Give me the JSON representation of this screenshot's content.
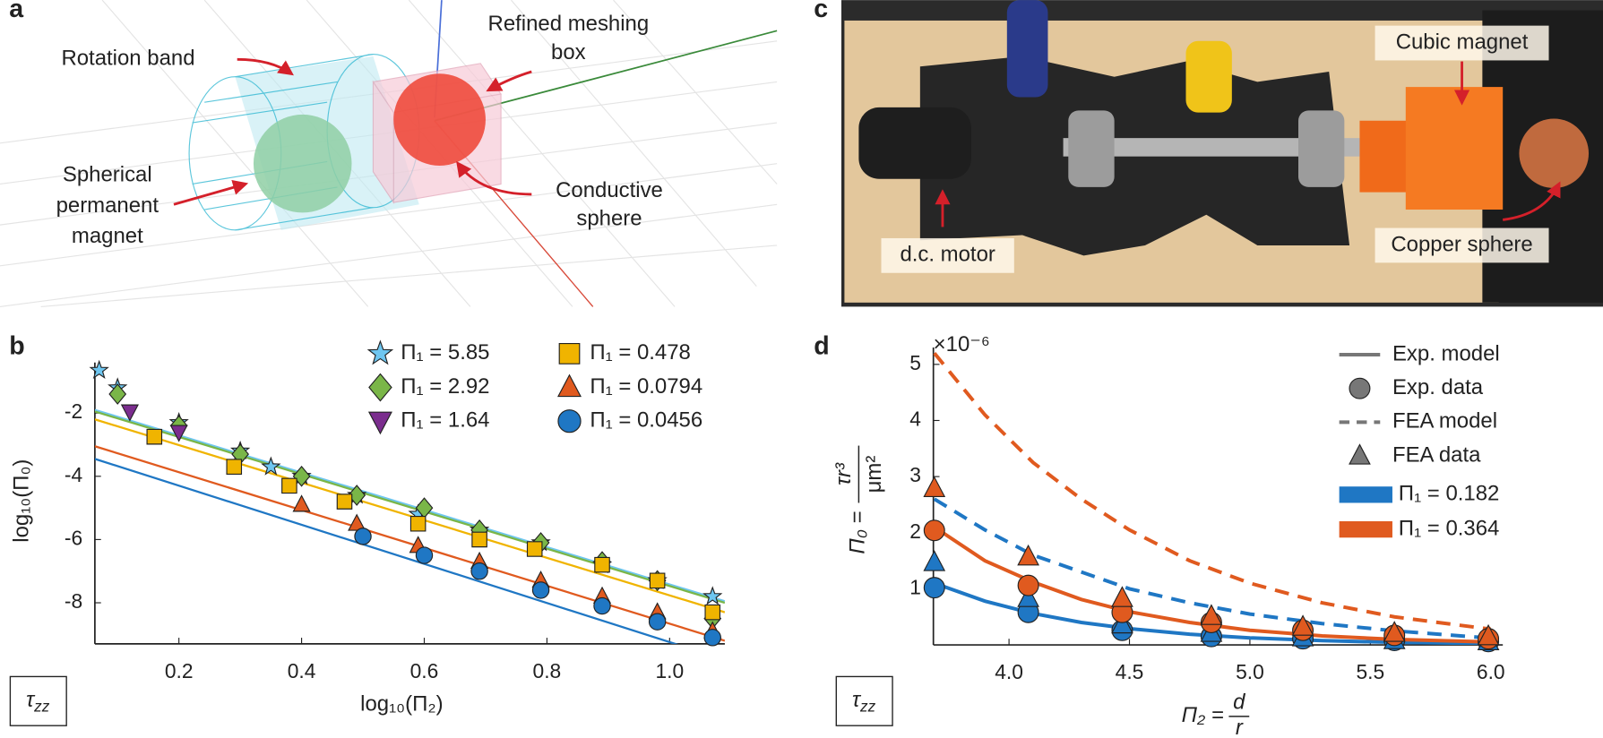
{
  "panels": {
    "a": {
      "letter": "a",
      "labels": [
        "Rotation band",
        "Refined meshing",
        "box",
        "Spherical",
        "permanent",
        "magnet",
        "Conductive",
        "sphere"
      ]
    },
    "c": {
      "letter": "c",
      "labels": [
        "Cubic magnet",
        "d.c. motor",
        "Copper sphere"
      ]
    }
  },
  "chart_data": [
    {
      "type": "scatter",
      "panel": "b",
      "xlabel": "log₁₀(Π₂)",
      "ylabel": "log₁₀(Π₀)",
      "corner_label": {
        "symbol": "τ",
        "subscript": "zz"
      },
      "xlim": [
        0.063,
        1.09
      ],
      "ylim": [
        -9.3,
        -0.4
      ],
      "xticks": [
        0.2,
        0.4,
        0.6,
        0.8,
        {
          "value": 1,
          "label": "1.0"
        }
      ],
      "yticks": [
        -2,
        -4,
        -6,
        -8
      ],
      "fit_x": [
        0.063,
        1.09
      ],
      "series": [
        {
          "name": "Π₁ = 5.85",
          "color": "#6ec6f0",
          "marker": "star",
          "x": [
            0.07,
            0.1,
            0.2,
            0.3,
            0.35,
            0.4,
            0.49,
            0.59,
            0.69,
            0.79,
            0.89,
            0.98,
            1.07
          ],
          "values": [
            -0.65,
            -1.2,
            -2.3,
            -3.2,
            -3.7,
            -4.0,
            -4.6,
            -5.2,
            -5.7,
            -6.1,
            -6.8,
            -7.3,
            -7.8
          ],
          "fit": [
            -1.9,
            -7.95
          ]
        },
        {
          "name": "Π₁ = 2.92",
          "color": "#7ab648",
          "marker": "diamond",
          "x": [
            0.1,
            0.2,
            0.3,
            0.4,
            0.49,
            0.6,
            0.69,
            0.79,
            0.89,
            0.98,
            1.07
          ],
          "values": [
            -1.4,
            -2.4,
            -3.3,
            -4.0,
            -4.6,
            -5.0,
            -5.7,
            -6.1,
            -6.7,
            -7.3,
            -8.5
          ],
          "fit": [
            -1.95,
            -8.0
          ]
        },
        {
          "name": "Π₁ = 1.64",
          "color": "#7b2d8e",
          "marker": "tri-down",
          "x": [
            0.12,
            0.2
          ],
          "values": [
            -1.95,
            -2.6
          ]
        },
        {
          "name": "Π₁ = 0.478",
          "color": "#f0b400",
          "marker": "square",
          "x": [
            0.16,
            0.29,
            0.38,
            0.47,
            0.59,
            0.69,
            0.78,
            0.89,
            0.98,
            1.07
          ],
          "values": [
            -2.75,
            -3.7,
            -4.3,
            -4.8,
            -5.5,
            -6.0,
            -6.3,
            -6.8,
            -7.3,
            -8.3
          ],
          "fit": [
            -2.2,
            -8.3
          ]
        },
        {
          "name": "Π₁ = 0.0794",
          "color": "#e05a1f",
          "marker": "tri-up",
          "x": [
            0.4,
            0.49,
            0.59,
            0.69,
            0.79,
            0.89,
            0.98,
            1.07
          ],
          "values": [
            -4.9,
            -5.5,
            -6.2,
            -6.7,
            -7.3,
            -7.8,
            -8.3,
            -8.9
          ],
          "fit": [
            -3.05,
            -9.2
          ]
        },
        {
          "name": "Π₁ = 0.0456",
          "color": "#1f77c4",
          "marker": "circle",
          "x": [
            0.5,
            0.6,
            0.69,
            0.79,
            0.89,
            0.98,
            1.07
          ],
          "values": [
            -5.9,
            -6.5,
            -7.0,
            -7.6,
            -8.1,
            -8.6,
            -9.1
          ],
          "fit": [
            -3.45,
            -9.8
          ]
        }
      ]
    },
    {
      "type": "line",
      "panel": "d",
      "exponent_label": "×10⁻⁶",
      "xlabel": {
        "lhs": "Π₂ =",
        "num": "d",
        "den": "r"
      },
      "ylabel": {
        "lhs": "Π₀ =",
        "num": "τr³",
        "den": "μm²"
      },
      "corner_label": {
        "symbol": "τ",
        "subscript": "zz"
      },
      "xlim": [
        3.686,
        6.05
      ],
      "ylim": [
        0,
        5.3
      ],
      "xticks": [
        {
          "value": 4,
          "label": "4.0"
        },
        4.5,
        {
          "value": 5,
          "label": "5.0"
        },
        5.5,
        {
          "value": 6,
          "label": "6.0"
        }
      ],
      "yticks": [
        1,
        2,
        3,
        4,
        5
      ],
      "legend_styles": [
        {
          "name": "Exp. model",
          "style": "solid"
        },
        {
          "name": "Exp. data",
          "style": "circle"
        },
        {
          "name": "FEA model",
          "style": "dashed"
        },
        {
          "name": "FEA data",
          "style": "triangle"
        }
      ],
      "style_color": "#777777",
      "model_x": [
        3.69,
        3.9,
        4.1,
        4.3,
        4.5,
        4.75,
        5.0,
        5.3,
        5.6,
        6.0
      ],
      "data_x": [
        3.69,
        4.08,
        4.47,
        4.84,
        5.22,
        5.6,
        5.99
      ],
      "series": [
        {
          "name": "Π₁ = 0.182",
          "color": "#1f77c4",
          "exp_model": [
            1.1,
            0.78,
            0.56,
            0.4,
            0.29,
            0.19,
            0.125,
            0.076,
            0.046,
            0.024
          ],
          "fea_model": [
            2.6,
            2.05,
            1.6,
            1.3,
            1.0,
            0.75,
            0.55,
            0.38,
            0.25,
            0.12
          ],
          "exp_data": [
            1.02,
            0.58,
            0.26,
            0.15,
            0.11,
            0.08,
            0.06
          ],
          "fea_data": [
            1.47,
            0.83,
            0.36,
            0.21,
            0.13,
            0.08,
            0.06
          ]
        },
        {
          "name": "Π₁ = 0.364",
          "color": "#e05a1f",
          "exp_model": [
            2.1,
            1.5,
            1.12,
            0.81,
            0.59,
            0.4,
            0.26,
            0.16,
            0.098,
            0.052
          ],
          "fea_model": [
            5.2,
            4.1,
            3.25,
            2.6,
            2.05,
            1.5,
            1.1,
            0.75,
            0.5,
            0.28
          ],
          "exp_data": [
            2.04,
            1.06,
            0.58,
            0.4,
            0.26,
            0.17,
            0.11
          ],
          "fea_data": [
            2.79,
            1.57,
            0.83,
            0.51,
            0.32,
            0.21,
            0.15
          ]
        }
      ]
    }
  ]
}
